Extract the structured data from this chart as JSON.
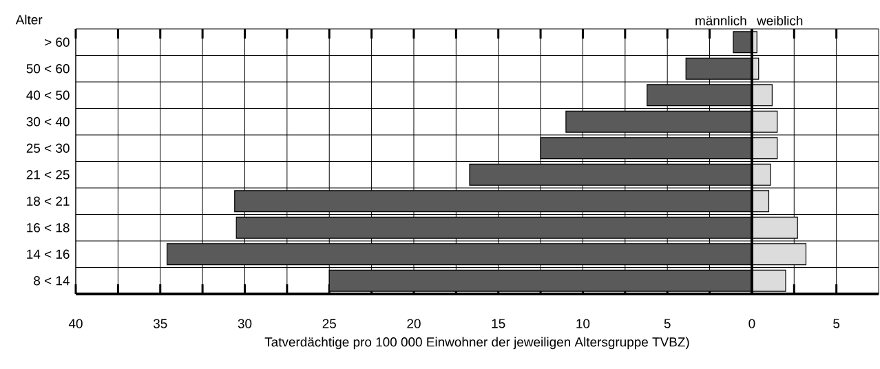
{
  "chart_data": {
    "type": "bar",
    "orientation": "horizontal",
    "xlabel": "Tatverdächtige pro 100 000 Einwohner der jeweiligen Altersgruppe TVBZ)",
    "ylabel": "Alter",
    "categories": [
      "> 60",
      "50 < 60",
      "40 < 50",
      "30 < 40",
      "25 < 30",
      "21 < 25",
      "18 < 21",
      "16 < 18",
      "14 < 16",
      "8 < 14"
    ],
    "series": [
      {
        "name": "männlich",
        "color": "#5a5a5a",
        "values": [
          -1.1,
          -3.9,
          -6.2,
          -11.0,
          -12.5,
          -16.7,
          -30.6,
          -30.5,
          -34.6,
          -25.0
        ]
      },
      {
        "name": "weiblich",
        "color": "#dcdcdc",
        "values": [
          0.3,
          0.4,
          1.2,
          1.5,
          1.5,
          1.1,
          1.0,
          2.7,
          3.2,
          2.0
        ]
      }
    ],
    "stacked": true,
    "xlim": [
      -40,
      7.5
    ],
    "xticks": [
      {
        "value": -40,
        "label": "40"
      },
      {
        "value": -37.5,
        "label": null
      },
      {
        "value": -35,
        "label": "35"
      },
      {
        "value": -32.5,
        "label": null
      },
      {
        "value": -30,
        "label": "30"
      },
      {
        "value": -27.5,
        "label": null
      },
      {
        "value": -25,
        "label": "25"
      },
      {
        "value": -22.5,
        "label": null
      },
      {
        "value": -20,
        "label": "20"
      },
      {
        "value": -17.5,
        "label": null
      },
      {
        "value": -15,
        "label": "15"
      },
      {
        "value": -12.5,
        "label": null
      },
      {
        "value": -10,
        "label": "10"
      },
      {
        "value": -7.5,
        "label": null
      },
      {
        "value": -5,
        "label": "5"
      },
      {
        "value": -2.5,
        "label": null
      },
      0,
      {
        "value": 2.5,
        "label": null
      },
      5
    ],
    "grid": true
  }
}
